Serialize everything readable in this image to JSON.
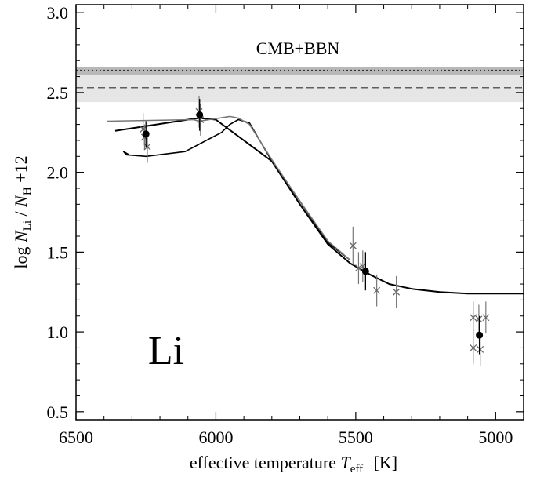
{
  "chart_data": {
    "type": "scatter",
    "xlabel_main": "effective temperature",
    "xlabel_symbol": "T",
    "xlabel_sub": "eff",
    "xlabel_unit": "[K]",
    "ylabel_parts": {
      "pre": "log ",
      "n1": "N",
      "s1": "Li",
      "mid": " / ",
      "n2": "N",
      "s2": "H",
      "post": " +12"
    },
    "xlim": [
      6500,
      4900
    ],
    "ylim": [
      0.45,
      3.05
    ],
    "x_ticks": [
      6500,
      6000,
      5500,
      5000
    ],
    "y_ticks": [
      0.5,
      1.0,
      1.5,
      2.0,
      2.5,
      3.0
    ],
    "y_tick_labels": [
      "0.5",
      "1.0",
      "1.5",
      "2.0",
      "2.5",
      "3.0"
    ],
    "element_label": "Li",
    "cmb": {
      "label": "CMB+BBN",
      "outer_band": [
        2.44,
        2.66
      ],
      "inner_band": [
        2.61,
        2.66
      ],
      "dotted_level": 2.64,
      "dashed_level": 2.53
    },
    "lines": [
      {
        "color": "#000000",
        "width": 2,
        "points": [
          [
            6360,
            2.26
          ],
          [
            6100,
            2.33
          ],
          [
            6060,
            2.34
          ],
          [
            6000,
            2.33
          ],
          [
            5900,
            2.2
          ],
          [
            5800,
            2.07
          ],
          [
            5700,
            1.8
          ],
          [
            5600,
            1.55
          ],
          [
            5520,
            1.43
          ],
          [
            5450,
            1.36
          ],
          [
            5380,
            1.3
          ],
          [
            5300,
            1.27
          ],
          [
            5200,
            1.25
          ],
          [
            5100,
            1.24
          ],
          [
            4900,
            1.24
          ]
        ]
      },
      {
        "color": "#000000",
        "width": 1.6,
        "points": [
          [
            6310,
            2.11
          ],
          [
            6330,
            2.13
          ],
          [
            6320,
            2.11
          ],
          [
            6250,
            2.1
          ],
          [
            6110,
            2.13
          ],
          [
            5980,
            2.25
          ],
          [
            5950,
            2.3
          ],
          [
            5920,
            2.33
          ],
          [
            5880,
            2.31
          ],
          [
            5800,
            2.07
          ],
          [
            5700,
            1.82
          ],
          [
            5600,
            1.56
          ],
          [
            5520,
            1.45
          ]
        ]
      },
      {
        "color": "#777777",
        "width": 1.6,
        "points": [
          [
            6390,
            2.32
          ],
          [
            6080,
            2.33
          ],
          [
            6060,
            2.32
          ],
          [
            5950,
            2.35
          ],
          [
            5920,
            2.34
          ],
          [
            5880,
            2.3
          ],
          [
            5800,
            2.08
          ],
          [
            5700,
            1.82
          ],
          [
            5600,
            1.57
          ],
          [
            5520,
            1.45
          ]
        ]
      }
    ],
    "crosses": [
      {
        "x": 6260,
        "y": 2.27,
        "err": 0.1
      },
      {
        "x": 6255,
        "y": 2.22,
        "err": 0.08
      },
      {
        "x": 6245,
        "y": 2.16,
        "err": 0.1
      },
      {
        "x": 6060,
        "y": 2.38,
        "err": 0.1
      },
      {
        "x": 6055,
        "y": 2.33,
        "err": 0.1
      },
      {
        "x": 5510,
        "y": 1.54,
        "err": 0.12
      },
      {
        "x": 5490,
        "y": 1.4,
        "err": 0.1
      },
      {
        "x": 5475,
        "y": 1.41,
        "err": 0.1
      },
      {
        "x": 5425,
        "y": 1.26,
        "err": 0.1
      },
      {
        "x": 5355,
        "y": 1.25,
        "err": 0.1
      },
      {
        "x": 5080,
        "y": 1.09,
        "err": 0.1
      },
      {
        "x": 5060,
        "y": 1.08,
        "err": 0.09
      },
      {
        "x": 5080,
        "y": 0.9,
        "err": 0.1
      },
      {
        "x": 5055,
        "y": 0.89,
        "err": 0.1
      },
      {
        "x": 5035,
        "y": 1.09,
        "err": 0.1
      }
    ],
    "means": [
      {
        "x": 6250,
        "y": 2.24,
        "err": 0.08
      },
      {
        "x": 6058,
        "y": 2.36,
        "err": 0.1
      },
      {
        "x": 5465,
        "y": 1.38,
        "err": 0.12
      },
      {
        "x": 5058,
        "y": 0.98,
        "err": 0.12
      }
    ]
  }
}
